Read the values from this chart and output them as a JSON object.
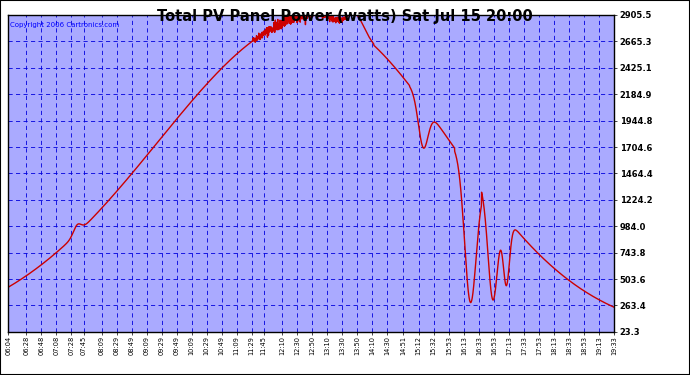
{
  "title": "Total PV Panel Power (watts) Sat Jul 15 20:00",
  "copyright_text": "Copyright 2006 Cartronics.com",
  "bg_color": "#ffffff",
  "plot_bg_color": "#ffffff",
  "line_color": "#cc0000",
  "title_color": "#000000",
  "y_ticks": [
    23.3,
    263.4,
    503.6,
    743.8,
    984.0,
    1224.2,
    1464.4,
    1704.6,
    1944.8,
    2184.9,
    2425.1,
    2665.3,
    2905.5
  ],
  "x_labels": [
    "06:04",
    "06:28",
    "06:48",
    "07:08",
    "07:28",
    "07:45",
    "08:09",
    "08:29",
    "08:49",
    "09:09",
    "09:29",
    "09:49",
    "10:09",
    "10:29",
    "10:49",
    "11:09",
    "11:29",
    "11:45",
    "12:10",
    "12:30",
    "12:50",
    "13:10",
    "13:30",
    "13:50",
    "14:10",
    "14:30",
    "14:51",
    "15:12",
    "15:32",
    "15:53",
    "16:13",
    "16:33",
    "16:53",
    "17:13",
    "17:33",
    "17:53",
    "18:13",
    "18:33",
    "18:53",
    "19:13",
    "19:33"
  ],
  "y_min": 23.3,
  "y_max": 2905.5,
  "grid_color": "#0000dd",
  "outer_border_color": "#000000",
  "plot_border_color": "#000000",
  "inner_bg": "#aaaaff"
}
